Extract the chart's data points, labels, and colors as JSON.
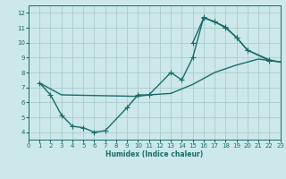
{
  "background_color": "#cce8ea",
  "grid_color": "#aacccc",
  "line_color": "#1a6b6b",
  "xlabel": "Humidex (Indice chaleur)",
  "xlim": [
    0,
    23
  ],
  "ylim": [
    3.5,
    12.5
  ],
  "xticks": [
    0,
    1,
    2,
    3,
    4,
    5,
    6,
    7,
    8,
    9,
    10,
    11,
    12,
    13,
    14,
    15,
    16,
    17,
    18,
    19,
    20,
    21,
    22,
    23
  ],
  "yticks": [
    4,
    5,
    6,
    7,
    8,
    9,
    10,
    11,
    12
  ],
  "curve1_x": [
    1,
    2,
    3,
    4,
    5,
    6,
    7,
    9,
    10,
    11,
    13,
    14,
    15,
    16,
    17,
    18,
    19,
    20,
    22
  ],
  "curve1_y": [
    7.3,
    6.5,
    5.15,
    4.4,
    4.3,
    4.0,
    4.1,
    5.65,
    6.5,
    6.5,
    8.0,
    7.5,
    9.0,
    11.7,
    11.4,
    11.0,
    10.35,
    9.5,
    8.8
  ],
  "curve2_x": [
    15,
    16,
    17,
    18,
    19,
    20,
    22,
    23
  ],
  "curve2_y": [
    10.0,
    11.65,
    11.4,
    11.05,
    10.35,
    9.5,
    8.85,
    8.7
  ],
  "curve3_x": [
    1,
    3,
    10,
    11,
    13,
    15,
    17,
    19,
    21,
    23
  ],
  "curve3_y": [
    7.3,
    6.5,
    6.4,
    6.5,
    6.6,
    7.2,
    8.0,
    8.5,
    8.9,
    8.7
  ],
  "marker_size": 2.5,
  "linewidth": 1.0
}
